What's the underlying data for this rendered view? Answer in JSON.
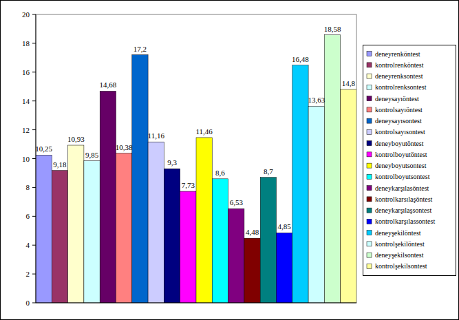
{
  "chart_data": {
    "type": "bar",
    "categories": [
      "deneyrenköntest",
      "kontrolrenköntest",
      "deneyrenksontest",
      "kontrolrenksontest",
      "deneysayıöntest",
      "kontrolsayıöntest",
      "deneysayısontest",
      "kontrolsayısontest",
      "deneyboyutöntest",
      "kontrolboyutöntest",
      "deneyboyutsontest",
      "kontrolboyutsontest",
      "deneykarşılasöntest",
      "kontrolkarsılaşöntest",
      "deneykarşılaşsontest",
      "kontrolkarşılassontest",
      "deneyşekilöntest",
      "kontrolşekilöntest",
      "deneyşekilsontest",
      "kontrolşekilsontest"
    ],
    "values": [
      10.25,
      9.18,
      10.93,
      9.85,
      14.68,
      10.38,
      17.2,
      11.16,
      9.3,
      7.73,
      11.46,
      8.6,
      6.53,
      4.48,
      8.7,
      4.85,
      16.48,
      13.63,
      18.58,
      14.8
    ],
    "value_labels": [
      "10,25",
      "9,18",
      "10,93",
      "9,85",
      "14,68",
      "10,38",
      "17,2",
      "11,16",
      "9,3",
      "7,73",
      "11,46",
      "8,6",
      "6,53",
      "4,48",
      "8,7",
      "4,85",
      "16,48",
      "13,63",
      "18,58",
      "14,8"
    ],
    "colors": [
      "#9999ff",
      "#993366",
      "#ffffcc",
      "#ccffff",
      "#660066",
      "#ff8080",
      "#0066cc",
      "#ccccff",
      "#000080",
      "#ff00ff",
      "#ffff00",
      "#00ffff",
      "#800080",
      "#800000",
      "#008080",
      "#0000ff",
      "#00ccff",
      "#ccffff",
      "#ccffcc",
      "#ffff99"
    ],
    "ylim": [
      0,
      20
    ],
    "yticks": [
      0,
      2,
      4,
      6,
      8,
      10,
      12,
      14,
      16,
      18,
      20
    ],
    "grid": false,
    "data_labels": true,
    "tick_labels": "y",
    "legend": "right"
  }
}
